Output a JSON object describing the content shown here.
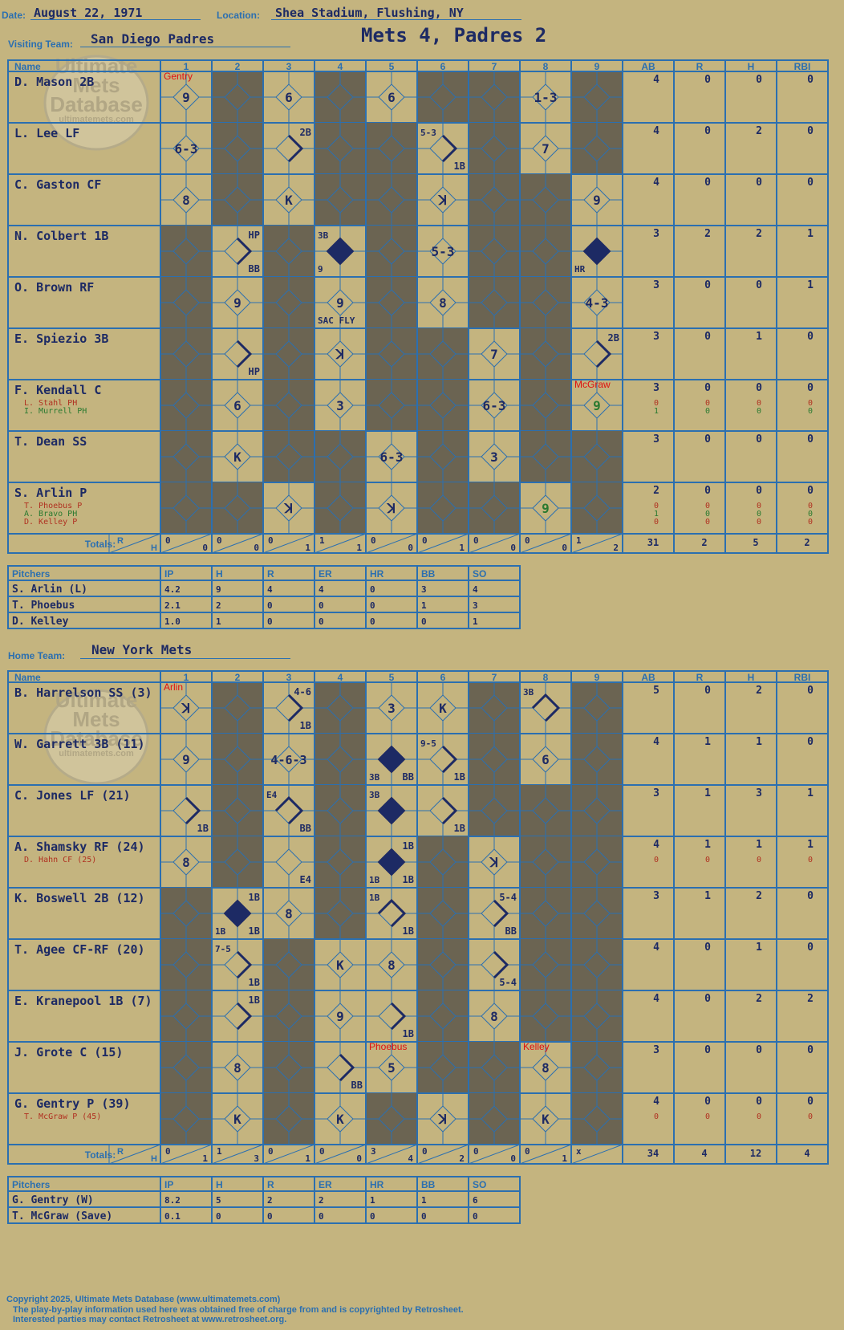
{
  "header": {
    "date_label": "Date:",
    "date": "August 22, 1971",
    "location_label": "Location:",
    "location": "Shea Stadium, Flushing, NY",
    "visiting_label": "Visiting Team:",
    "visiting_team": "San Diego Padres",
    "home_label": "Home Team:",
    "home_team": "New York Mets",
    "title": "Mets 4, Padres 2"
  },
  "watermark": {
    "line1": "Ultimate",
    "line2": "Mets",
    "line3": "Database",
    "line4": "ultimatemets.com"
  },
  "columns": {
    "name": "Name",
    "innings": [
      "1",
      "2",
      "3",
      "4",
      "5",
      "6",
      "7",
      "8",
      "9"
    ],
    "stats": [
      "AB",
      "R",
      "H",
      "RBI"
    ],
    "totals": "Totals:",
    "r": "R",
    "h": "H"
  },
  "colors": {
    "background": "#c4b47f",
    "grid": "#2b6fb0",
    "ink": "#1d2a64",
    "shade": "#6b6452",
    "sub_red": "#b03020",
    "sub_green": "#2a7a30",
    "pitch_change": "#e01010"
  },
  "visitors": {
    "batters": [
      {
        "name": "D. Mason 2B",
        "subs": [],
        "stats": [
          [
            "4",
            "0",
            "0",
            "0"
          ]
        ],
        "marker": {
          "inning": 1,
          "text": "Gentry"
        },
        "cells": [
          {
            "i": 1,
            "t": "9"
          },
          {
            "i": 3,
            "t": "6"
          },
          {
            "i": 5,
            "t": "6"
          },
          {
            "i": 8,
            "t": "1-3"
          }
        ],
        "shade": [
          2,
          4,
          6,
          7,
          9
        ]
      },
      {
        "name": "L. Lee LF",
        "subs": [],
        "stats": [
          [
            "4",
            "0",
            "2",
            "0"
          ]
        ],
        "cells": [
          {
            "i": 1,
            "t": "6-3"
          },
          {
            "i": 3,
            "b": 1,
            "tr": "2B"
          },
          {
            "i": 6,
            "b": 1,
            "tl": "5-3",
            "br": "1B"
          },
          {
            "i": 8,
            "t": "7"
          }
        ],
        "shade": [
          2,
          4,
          5,
          7,
          9
        ]
      },
      {
        "name": "C. Gaston CF",
        "subs": [],
        "stats": [
          [
            "4",
            "0",
            "0",
            "0"
          ]
        ],
        "cells": [
          {
            "i": 1,
            "t": "8"
          },
          {
            "i": 3,
            "t": "K"
          },
          {
            "i": 6,
            "t": "ꓘ"
          },
          {
            "i": 9,
            "t": "9"
          }
        ],
        "shade": [
          2,
          4,
          5,
          7,
          8
        ]
      },
      {
        "name": "N. Colbert 1B",
        "subs": [],
        "stats": [
          [
            "3",
            "2",
            "2",
            "1"
          ]
        ],
        "cells": [
          {
            "i": 2,
            "b": 1,
            "tr": "HP",
            "br": "BB"
          },
          {
            "i": 4,
            "d": 1,
            "tl": "3B",
            "bl": "9"
          },
          {
            "i": 6,
            "t": "5-3"
          },
          {
            "i": 9,
            "d": 1,
            "bl": "HR"
          }
        ],
        "shade": [
          1,
          3,
          5,
          7,
          8
        ]
      },
      {
        "name": "O. Brown RF",
        "subs": [],
        "stats": [
          [
            "3",
            "0",
            "0",
            "1"
          ]
        ],
        "cells": [
          {
            "i": 2,
            "t": "9"
          },
          {
            "i": 4,
            "t": "9",
            "bl": "SAC FLY"
          },
          {
            "i": 6,
            "t": "8"
          },
          {
            "i": 9,
            "t": "4-3"
          }
        ],
        "shade": [
          1,
          3,
          5,
          7,
          8
        ]
      },
      {
        "name": "E. Spiezio 3B",
        "subs": [],
        "stats": [
          [
            "3",
            "0",
            "1",
            "0"
          ]
        ],
        "cells": [
          {
            "i": 2,
            "b": 1,
            "br": "HP"
          },
          {
            "i": 4,
            "t": "ꓘ"
          },
          {
            "i": 7,
            "t": "7"
          },
          {
            "i": 9,
            "b": 1,
            "tr": "2B"
          }
        ],
        "shade": [
          1,
          3,
          5,
          6,
          8
        ]
      },
      {
        "name": "F. Kendall C",
        "subs": [
          {
            "name": "L. Stahl PH",
            "color": "red",
            "stats": [
              "0",
              "0",
              "0",
              "0"
            ]
          },
          {
            "name": "I. Murrell PH",
            "color": "green",
            "stats": [
              "1",
              "0",
              "0",
              "0"
            ]
          }
        ],
        "stats": [
          [
            "3",
            "0",
            "0",
            "0"
          ]
        ],
        "marker": {
          "inning": 9,
          "text": "McGraw"
        },
        "cells": [
          {
            "i": 2,
            "t": "6"
          },
          {
            "i": 4,
            "t": "3"
          },
          {
            "i": 7,
            "t": "6-3"
          },
          {
            "i": 9,
            "t": "9",
            "g": 1
          }
        ],
        "shade": [
          1,
          3,
          5,
          6,
          8
        ]
      },
      {
        "name": "T. Dean SS",
        "subs": [],
        "stats": [
          [
            "3",
            "0",
            "0",
            "0"
          ]
        ],
        "cells": [
          {
            "i": 2,
            "t": "K"
          },
          {
            "i": 5,
            "t": "6-3"
          },
          {
            "i": 7,
            "t": "3"
          }
        ],
        "shade": [
          1,
          3,
          4,
          6,
          8,
          9
        ]
      },
      {
        "name": "S. Arlin P",
        "subs": [
          {
            "name": "T. Phoebus P",
            "color": "red",
            "stats": [
              "0",
              "0",
              "0",
              "0"
            ]
          },
          {
            "name": "A. Bravo PH",
            "color": "green",
            "stats": [
              "1",
              "0",
              "0",
              "0"
            ]
          },
          {
            "name": "D. Kelley P",
            "color": "red",
            "stats": [
              "0",
              "0",
              "0",
              "0"
            ]
          }
        ],
        "stats": [
          [
            "2",
            "0",
            "0",
            "0"
          ]
        ],
        "cells": [
          {
            "i": 3,
            "t": "ꓘ"
          },
          {
            "i": 5,
            "t": "ꓘ"
          },
          {
            "i": 8,
            "t": "9",
            "g": 1
          }
        ],
        "shade": [
          1,
          2,
          4,
          6,
          7,
          9
        ]
      }
    ],
    "totals": [
      [
        "0",
        "0"
      ],
      [
        "0",
        "0"
      ],
      [
        "0",
        "1"
      ],
      [
        "1",
        "1"
      ],
      [
        "0",
        "0"
      ],
      [
        "0",
        "1"
      ],
      [
        "0",
        "0"
      ],
      [
        "0",
        "0"
      ],
      [
        "1",
        "2"
      ]
    ],
    "totals_stats": [
      "31",
      "2",
      "5",
      "2"
    ],
    "pitchers_header": [
      "Pitchers",
      "IP",
      "H",
      "R",
      "ER",
      "HR",
      "BB",
      "SO"
    ],
    "pitchers": [
      [
        "S. Arlin (L)",
        "4.2",
        "9",
        "4",
        "4",
        "0",
        "3",
        "4"
      ],
      [
        "T. Phoebus",
        "2.1",
        "2",
        "0",
        "0",
        "0",
        "1",
        "3"
      ],
      [
        "D. Kelley",
        "1.0",
        "1",
        "0",
        "0",
        "0",
        "0",
        "1"
      ]
    ]
  },
  "home": {
    "batters": [
      {
        "name": "B. Harrelson SS (3)",
        "subs": [],
        "stats": [
          [
            "5",
            "0",
            "2",
            "0"
          ]
        ],
        "marker": {
          "inning": 1,
          "text": "Arlin"
        },
        "cells": [
          {
            "i": 1,
            "t": "ꓘ"
          },
          {
            "i": 3,
            "b": 1,
            "tr": "4-6",
            "br": "1B"
          },
          {
            "i": 5,
            "t": "3"
          },
          {
            "i": 6,
            "t": "K"
          },
          {
            "i": 8,
            "b": 2,
            "tl": "3B"
          }
        ],
        "shade": [
          2,
          4,
          7,
          9
        ]
      },
      {
        "name": "W. Garrett 3B (11)",
        "subs": [],
        "stats": [
          [
            "4",
            "1",
            "1",
            "0"
          ]
        ],
        "cells": [
          {
            "i": 1,
            "t": "9"
          },
          {
            "i": 3,
            "t": "4-6-3"
          },
          {
            "i": 5,
            "d": 1,
            "bl": "3B",
            "br": "BB"
          },
          {
            "i": 6,
            "b": 1,
            "tl": "9-5",
            "br": "1B"
          },
          {
            "i": 8,
            "t": "6"
          }
        ],
        "shade": [
          2,
          4,
          7,
          9
        ]
      },
      {
        "name": "C. Jones LF (21)",
        "subs": [],
        "stats": [
          [
            "3",
            "1",
            "3",
            "1"
          ]
        ],
        "cells": [
          {
            "i": 1,
            "b": 1,
            "br": "1B"
          },
          {
            "i": 3,
            "b": 2,
            "tl": "E4",
            "br": "BB"
          },
          {
            "i": 5,
            "d": 1,
            "tl": "3B"
          },
          {
            "i": 6,
            "b": 1,
            "br": "1B"
          }
        ],
        "shade": [
          2,
          4,
          7,
          8,
          9
        ]
      },
      {
        "name": "A. Shamsky RF (24)",
        "subs": [
          {
            "name": "D. Hahn CF (25)",
            "color": "red",
            "stats": [
              "0",
              "0",
              "0",
              "0"
            ]
          }
        ],
        "stats": [
          [
            "4",
            "1",
            "1",
            "1"
          ]
        ],
        "cells": [
          {
            "i": 1,
            "t": "8"
          },
          {
            "i": 3,
            "br": "E4"
          },
          {
            "i": 5,
            "d": 1,
            "tr": "1B",
            "bl": "1B",
            "br": "1B"
          },
          {
            "i": 7,
            "t": "ꓘ"
          }
        ],
        "shade": [
          2,
          4,
          6,
          8,
          9
        ]
      },
      {
        "name": "K. Boswell 2B (12)",
        "subs": [],
        "stats": [
          [
            "3",
            "1",
            "2",
            "0"
          ]
        ],
        "cells": [
          {
            "i": 2,
            "d": 1,
            "tr": "1B",
            "bl": "1B",
            "br": "1B"
          },
          {
            "i": 3,
            "t": "8"
          },
          {
            "i": 5,
            "b": 2,
            "tl": "1B",
            "br": "1B"
          },
          {
            "i": 7,
            "b": 1,
            "tr": "5-4",
            "br": "BB"
          }
        ],
        "shade": [
          1,
          4,
          6,
          8,
          9
        ]
      },
      {
        "name": "T. Agee CF-RF (20)",
        "subs": [],
        "stats": [
          [
            "4",
            "0",
            "1",
            "0"
          ]
        ],
        "cells": [
          {
            "i": 2,
            "b": 1,
            "tl": "7-5",
            "br": "1B"
          },
          {
            "i": 4,
            "t": "K"
          },
          {
            "i": 5,
            "t": "8"
          },
          {
            "i": 7,
            "b": 1,
            "br": "5-4"
          }
        ],
        "shade": [
          1,
          3,
          6,
          8,
          9
        ]
      },
      {
        "name": "E. Kranepool 1B (7)",
        "subs": [],
        "stats": [
          [
            "4",
            "0",
            "2",
            "2"
          ]
        ],
        "cells": [
          {
            "i": 2,
            "b": 1,
            "tr": "1B"
          },
          {
            "i": 4,
            "t": "9"
          },
          {
            "i": 5,
            "b": 1,
            "br": "1B"
          },
          {
            "i": 7,
            "t": "8"
          }
        ],
        "shade": [
          1,
          3,
          6,
          8,
          9
        ]
      },
      {
        "name": "J. Grote C (15)",
        "subs": [],
        "stats": [
          [
            "3",
            "0",
            "0",
            "0"
          ]
        ],
        "marker2": [
          {
            "inning": 5,
            "text": "Phoebus"
          },
          {
            "inning": 8,
            "text": "Kelley"
          }
        ],
        "cells": [
          {
            "i": 2,
            "t": "8"
          },
          {
            "i": 4,
            "b": 1,
            "br": "BB"
          },
          {
            "i": 5,
            "t": "5"
          },
          {
            "i": 8,
            "t": "8"
          }
        ],
        "shade": [
          1,
          3,
          6,
          7,
          9
        ]
      },
      {
        "name": "G. Gentry P (39)",
        "subs": [
          {
            "name": "T. McGraw P (45)",
            "color": "red",
            "stats": [
              "0",
              "0",
              "0",
              "0"
            ]
          }
        ],
        "stats": [
          [
            "4",
            "0",
            "0",
            "0"
          ]
        ],
        "cells": [
          {
            "i": 2,
            "t": "K"
          },
          {
            "i": 4,
            "t": "K"
          },
          {
            "i": 6,
            "t": "ꓘ"
          },
          {
            "i": 8,
            "t": "K"
          }
        ],
        "shade": [
          1,
          3,
          5,
          7,
          9
        ]
      }
    ],
    "totals": [
      [
        "0",
        "1"
      ],
      [
        "1",
        "3"
      ],
      [
        "0",
        "1"
      ],
      [
        "0",
        "0"
      ],
      [
        "3",
        "4"
      ],
      [
        "0",
        "2"
      ],
      [
        "0",
        "0"
      ],
      [
        "0",
        "1"
      ],
      [
        "x",
        ""
      ]
    ],
    "totals_stats": [
      "34",
      "4",
      "12",
      "4"
    ],
    "pitchers_header": [
      "Pitchers",
      "IP",
      "H",
      "R",
      "ER",
      "HR",
      "BB",
      "SO"
    ],
    "pitchers": [
      [
        "G. Gentry (W)",
        "8.2",
        "5",
        "2",
        "2",
        "1",
        "1",
        "6"
      ],
      [
        "T. McGraw (Save)",
        "0.1",
        "0",
        "0",
        "0",
        "0",
        "0",
        "0"
      ]
    ]
  },
  "footer": {
    "line1": "Copyright 2025, Ultimate Mets Database (www.ultimatemets.com)",
    "line2": "The play-by-play information used here was obtained free of charge from and is copyrighted by Retrosheet.",
    "line3": "Interested parties may contact Retrosheet at www.retrosheet.org."
  }
}
